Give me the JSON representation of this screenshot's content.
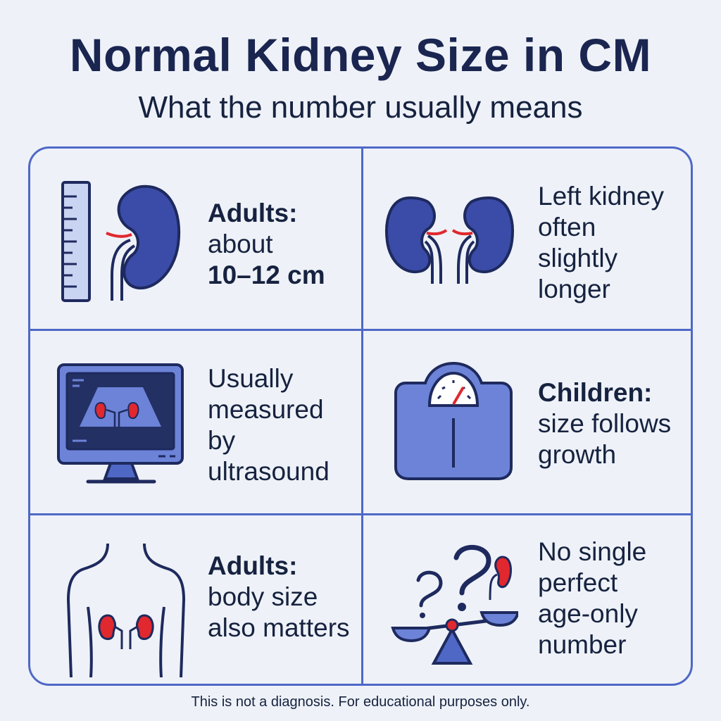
{
  "header": {
    "title": "Normal Kidney Size in CM",
    "subtitle": "What the number usually means"
  },
  "cards": [
    {
      "icon": "ruler-kidney-icon",
      "heading": "Adults:",
      "line1": "about",
      "line2": "10–12 cm"
    },
    {
      "icon": "two-kidneys-icon",
      "line1": "Left kidney",
      "line2": "often",
      "line3": "slightly",
      "line4": "longer"
    },
    {
      "icon": "ultrasound-monitor-icon",
      "line1": "Usually",
      "line2": "measured",
      "line3": "by",
      "line4": "ultrasound"
    },
    {
      "icon": "scale-icon",
      "heading": "Children:",
      "line1": "size follows",
      "line2": "growth"
    },
    {
      "icon": "body-outline-icon",
      "heading": "Adults:",
      "line1": "body size",
      "line2": "also matters"
    },
    {
      "icon": "question-balance-icon",
      "line1": "No single",
      "line2": "perfect",
      "line3": "age-only",
      "line4": "number"
    }
  ],
  "footer": {
    "disclaimer": "This is not a diagnosis. For educational purposes only."
  },
  "colors": {
    "accent": "#4f68c6",
    "kidney": "#3b4ba8",
    "outline": "#1e2a5e",
    "highlight": "#e0282e",
    "background": "#eef2f8"
  }
}
